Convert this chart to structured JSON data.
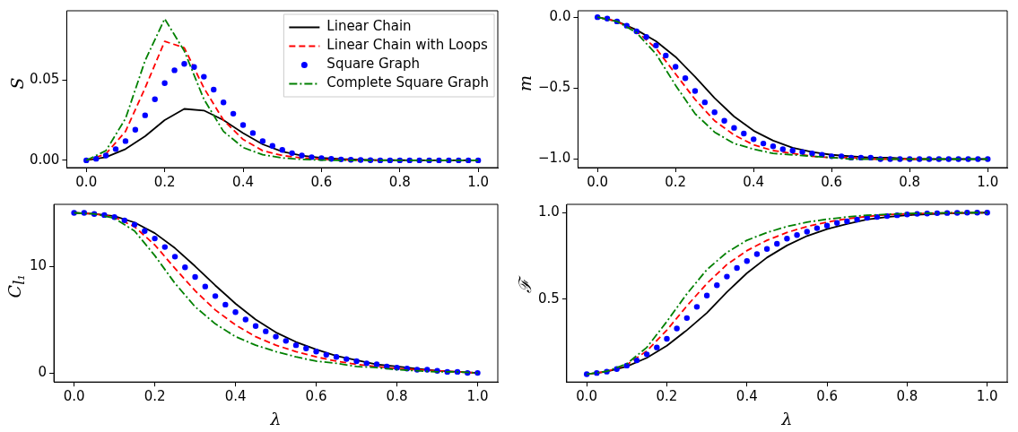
{
  "chart_data": [
    {
      "type": "line",
      "ylabel": "S",
      "xlim": [
        -0.05,
        1.05
      ],
      "ylim": [
        -0.0045,
        0.093
      ],
      "x": [
        0,
        0.05,
        0.1,
        0.15,
        0.2,
        0.25,
        0.3,
        0.35,
        0.4,
        0.45,
        0.5,
        0.55,
        0.6,
        0.65,
        0.7,
        0.75,
        0.8,
        0.85,
        0.9,
        0.95,
        1.0
      ],
      "xticks": [
        {
          "value": 0,
          "label": "0.0"
        },
        {
          "value": 0.2,
          "label": "0.2"
        },
        {
          "value": 0.4,
          "label": "0.4"
        },
        {
          "value": 0.6,
          "label": "0.6"
        },
        {
          "value": 0.8,
          "label": "0.8"
        },
        {
          "value": 1,
          "label": "1.0"
        }
      ],
      "yticks": [
        {
          "value": 0,
          "label": "0.00"
        },
        {
          "value": 0.05,
          "label": "0.05"
        }
      ],
      "legend": "top right",
      "series": [
        {
          "name": "Linear Chain",
          "color": "#000000",
          "line_style": "solid",
          "values": [
            0,
            0.002,
            0.007,
            0.015,
            0.025,
            0.032,
            0.031,
            0.025,
            0.017,
            0.01,
            0.0055,
            0.003,
            0.0015,
            0.0008,
            0.0004,
            0.0002,
            0.0001,
            0,
            0,
            0,
            0
          ]
        },
        {
          "name": "Linear Chain with Loops",
          "color": "#ff0000",
          "line_style": "dashed",
          "values": [
            0,
            0.004,
            0.018,
            0.045,
            0.074,
            0.07,
            0.045,
            0.025,
            0.013,
            0.006,
            0.003,
            0.0015,
            0.0007,
            0.0003,
            0.0001,
            0,
            null,
            null,
            null,
            null,
            null
          ]
        },
        {
          "name": "Square Graph",
          "type": "scatter",
          "color": "#0000ff",
          "marker": "circle",
          "x": [
            0,
            0.025,
            0.05,
            0.075,
            0.1,
            0.125,
            0.15,
            0.175,
            0.2,
            0.225,
            0.25,
            0.275,
            0.3,
            0.325,
            0.35,
            0.375,
            0.4,
            0.425,
            0.45,
            0.475,
            0.5,
            0.525,
            0.55,
            0.575,
            0.6,
            0.625,
            0.65,
            0.675,
            0.7,
            0.725,
            0.75,
            0.775,
            0.8,
            0.825,
            0.85,
            0.875,
            0.9,
            0.925,
            0.95,
            0.975,
            1.0
          ],
          "values": [
            0,
            0.001,
            0.003,
            0.007,
            0.012,
            0.019,
            0.028,
            0.038,
            0.048,
            0.056,
            0.06,
            0.058,
            0.052,
            0.044,
            0.036,
            0.029,
            0.022,
            0.017,
            0.012,
            0.009,
            0.0065,
            0.0045,
            0.003,
            0.002,
            0.0014,
            0.0009,
            0.0006,
            0.0004,
            0.0002,
            0.0001,
            0,
            0,
            0,
            0,
            0,
            0,
            0,
            0,
            0,
            0,
            0
          ]
        },
        {
          "name": "Complete Square Graph",
          "color": "#008000",
          "line_style": "dashdot",
          "values": [
            0,
            0.006,
            0.026,
            0.062,
            0.088,
            0.068,
            0.038,
            0.018,
            0.008,
            0.0035,
            0.0015,
            0.0006,
            0.0002,
            0,
            0,
            0,
            0,
            0,
            0,
            0,
            0
          ]
        }
      ]
    },
    {
      "type": "line",
      "ylabel": "m",
      "xlim": [
        -0.05,
        1.05
      ],
      "ylim": [
        -1.06,
        0.045
      ],
      "x": [
        0,
        0.05,
        0.1,
        0.15,
        0.2,
        0.25,
        0.3,
        0.35,
        0.4,
        0.45,
        0.5,
        0.55,
        0.6,
        0.65,
        0.7,
        0.75,
        0.8,
        0.85,
        0.9,
        0.95,
        1.0
      ],
      "xticks": [
        {
          "value": 0,
          "label": "0.0"
        },
        {
          "value": 0.2,
          "label": "0.2"
        },
        {
          "value": 0.4,
          "label": "0.4"
        },
        {
          "value": 0.6,
          "label": "0.6"
        },
        {
          "value": 0.8,
          "label": "0.8"
        },
        {
          "value": 1,
          "label": "1.0"
        }
      ],
      "yticks": [
        {
          "value": 0,
          "label": "0.0"
        },
        {
          "value": -0.5,
          "label": "−0.5"
        },
        {
          "value": -1,
          "label": "−1.0"
        }
      ],
      "series": [
        {
          "color": "#000000",
          "line_style": "solid",
          "values": [
            0,
            -0.03,
            -0.09,
            -0.17,
            -0.28,
            -0.42,
            -0.57,
            -0.7,
            -0.8,
            -0.87,
            -0.92,
            -0.95,
            -0.97,
            -0.98,
            -0.99,
            -0.99,
            -1,
            -1,
            -1,
            -1,
            -1
          ]
        },
        {
          "color": "#ff0000",
          "line_style": "dashed",
          "values": [
            0,
            -0.03,
            -0.1,
            -0.22,
            -0.4,
            -0.58,
            -0.73,
            -0.83,
            -0.9,
            -0.94,
            -0.96,
            -0.98,
            -0.99,
            -0.99,
            -1,
            -1,
            -1,
            -1,
            null,
            null,
            null
          ]
        },
        {
          "type": "scatter",
          "color": "#0000ff",
          "marker": "circle",
          "x": [
            0,
            0.025,
            0.05,
            0.075,
            0.1,
            0.125,
            0.15,
            0.175,
            0.2,
            0.225,
            0.25,
            0.275,
            0.3,
            0.325,
            0.35,
            0.375,
            0.4,
            0.425,
            0.45,
            0.475,
            0.5,
            0.525,
            0.55,
            0.575,
            0.6,
            0.625,
            0.65,
            0.675,
            0.7,
            0.725,
            0.75,
            0.775,
            0.8,
            0.825,
            0.85,
            0.875,
            0.9,
            0.925,
            0.95,
            0.975,
            1.0
          ],
          "values": [
            0,
            -0.01,
            -0.03,
            -0.06,
            -0.1,
            -0.14,
            -0.2,
            -0.27,
            -0.35,
            -0.43,
            -0.52,
            -0.6,
            -0.67,
            -0.73,
            -0.78,
            -0.82,
            -0.86,
            -0.89,
            -0.91,
            -0.93,
            -0.94,
            -0.95,
            -0.96,
            -0.97,
            -0.98,
            -0.98,
            -0.99,
            -0.99,
            -0.99,
            -1,
            -1,
            -1,
            -1,
            -1,
            -1,
            -1,
            -1,
            -1,
            -1,
            -1,
            -1
          ]
        },
        {
          "color": "#008000",
          "line_style": "dashdot",
          "values": [
            0,
            -0.03,
            -0.11,
            -0.26,
            -0.48,
            -0.68,
            -0.81,
            -0.89,
            -0.93,
            -0.96,
            -0.97,
            -0.98,
            -0.99,
            -1,
            -1,
            -1,
            -1,
            -1,
            -1,
            -1,
            -1
          ]
        }
      ]
    },
    {
      "type": "line",
      "ylabel": "C$_{l₁}$",
      "xlabel": "λ",
      "xlim": [
        -0.05,
        1.05
      ],
      "ylim": [
        -0.85,
        15.8
      ],
      "x": [
        0,
        0.05,
        0.1,
        0.15,
        0.2,
        0.25,
        0.3,
        0.35,
        0.4,
        0.45,
        0.5,
        0.55,
        0.6,
        0.65,
        0.7,
        0.75,
        0.8,
        0.85,
        0.9,
        0.95,
        1.0
      ],
      "xticks": [
        {
          "value": 0,
          "label": "0.0"
        },
        {
          "value": 0.2,
          "label": "0.2"
        },
        {
          "value": 0.4,
          "label": "0.4"
        },
        {
          "value": 0.6,
          "label": "0.6"
        },
        {
          "value": 0.8,
          "label": "0.8"
        },
        {
          "value": 1,
          "label": "1.0"
        }
      ],
      "yticks": [
        0,
        10
      ],
      "series": [
        {
          "color": "#000000",
          "line_style": "solid",
          "values": [
            15,
            14.9,
            14.7,
            14.1,
            13.1,
            11.7,
            10.0,
            8.2,
            6.5,
            5.0,
            3.8,
            2.9,
            2.2,
            1.6,
            1.2,
            0.8,
            0.6,
            0.4,
            0.2,
            0.1,
            0
          ]
        },
        {
          "color": "#ff0000",
          "line_style": "dashed",
          "values": [
            15,
            14.9,
            14.6,
            13.7,
            12.0,
            9.8,
            7.7,
            5.9,
            4.5,
            3.4,
            2.6,
            2.0,
            1.5,
            1.1,
            0.8,
            0.6,
            0.4,
            0.3,
            0.2,
            0.1,
            0
          ]
        },
        {
          "type": "scatter",
          "color": "#0000ff",
          "marker": "circle",
          "x": [
            0,
            0.025,
            0.05,
            0.075,
            0.1,
            0.125,
            0.15,
            0.175,
            0.2,
            0.225,
            0.25,
            0.275,
            0.3,
            0.325,
            0.35,
            0.375,
            0.4,
            0.425,
            0.45,
            0.475,
            0.5,
            0.525,
            0.55,
            0.575,
            0.6,
            0.625,
            0.65,
            0.675,
            0.7,
            0.725,
            0.75,
            0.775,
            0.8,
            0.825,
            0.85,
            0.875,
            0.9,
            0.925,
            0.95,
            0.975,
            1.0
          ],
          "values": [
            15,
            15,
            14.9,
            14.8,
            14.6,
            14.3,
            13.9,
            13.3,
            12.6,
            11.8,
            10.9,
            9.9,
            9.0,
            8.1,
            7.2,
            6.4,
            5.7,
            5.0,
            4.4,
            3.9,
            3.4,
            3.0,
            2.6,
            2.3,
            2.0,
            1.7,
            1.5,
            1.3,
            1.1,
            0.9,
            0.8,
            0.6,
            0.5,
            0.4,
            0.3,
            0.3,
            0.2,
            0.1,
            0.1,
            0,
            0
          ]
        },
        {
          "color": "#008000",
          "line_style": "dashdot",
          "values": [
            15,
            14.9,
            14.5,
            13.3,
            11.0,
            8.4,
            6.2,
            4.6,
            3.4,
            2.6,
            2.0,
            1.5,
            1.1,
            0.9,
            0.6,
            0.5,
            0.3,
            0.2,
            0.1,
            0.1,
            0
          ]
        }
      ]
    },
    {
      "type": "line",
      "ylabel": "ℱ",
      "xlabel": "λ",
      "xlim": [
        -0.05,
        1.05
      ],
      "ylim": [
        0.02,
        1.048
      ],
      "x": [
        0,
        0.05,
        0.1,
        0.15,
        0.2,
        0.25,
        0.3,
        0.35,
        0.4,
        0.45,
        0.5,
        0.55,
        0.6,
        0.65,
        0.7,
        0.75,
        0.8,
        0.85,
        0.9,
        0.95,
        1.0
      ],
      "xticks": [
        {
          "value": 0,
          "label": "0.0"
        },
        {
          "value": 0.2,
          "label": "0.2"
        },
        {
          "value": 0.4,
          "label": "0.4"
        },
        {
          "value": 0.6,
          "label": "0.6"
        },
        {
          "value": 0.8,
          "label": "0.8"
        },
        {
          "value": 1,
          "label": "1.0"
        }
      ],
      "yticks": [
        0.5,
        {
          "value": 1,
          "label": "1.0"
        }
      ],
      "series": [
        {
          "color": "#000000",
          "line_style": "solid",
          "values": [
            0.065,
            0.08,
            0.11,
            0.16,
            0.23,
            0.32,
            0.42,
            0.54,
            0.65,
            0.74,
            0.81,
            0.865,
            0.905,
            0.935,
            0.96,
            0.975,
            0.985,
            0.99,
            0.995,
            0.998,
            1
          ]
        },
        {
          "color": "#ff0000",
          "line_style": "dashed",
          "values": [
            0.065,
            0.08,
            0.12,
            0.2,
            0.32,
            0.46,
            0.59,
            0.7,
            0.78,
            0.84,
            0.885,
            0.92,
            0.945,
            0.965,
            0.978,
            0.988,
            0.993,
            0.996,
            0.998,
            0.999,
            1
          ]
        },
        {
          "type": "scatter",
          "color": "#0000ff",
          "marker": "circle",
          "x": [
            0,
            0.025,
            0.05,
            0.075,
            0.1,
            0.125,
            0.15,
            0.175,
            0.2,
            0.225,
            0.25,
            0.275,
            0.3,
            0.325,
            0.35,
            0.375,
            0.4,
            0.425,
            0.45,
            0.475,
            0.5,
            0.525,
            0.55,
            0.575,
            0.6,
            0.625,
            0.65,
            0.675,
            0.7,
            0.725,
            0.75,
            0.775,
            0.8,
            0.825,
            0.85,
            0.875,
            0.9,
            0.925,
            0.95,
            0.975,
            1.0
          ],
          "values": [
            0.065,
            0.072,
            0.08,
            0.095,
            0.115,
            0.145,
            0.18,
            0.22,
            0.27,
            0.33,
            0.39,
            0.455,
            0.52,
            0.58,
            0.63,
            0.68,
            0.72,
            0.76,
            0.79,
            0.82,
            0.85,
            0.87,
            0.89,
            0.91,
            0.925,
            0.94,
            0.95,
            0.96,
            0.97,
            0.975,
            0.98,
            0.985,
            0.99,
            0.993,
            0.995,
            0.997,
            0.998,
            0.999,
            1,
            1,
            1
          ]
        },
        {
          "color": "#008000",
          "line_style": "dashdot",
          "values": [
            0.065,
            0.082,
            0.125,
            0.22,
            0.37,
            0.53,
            0.67,
            0.77,
            0.84,
            0.885,
            0.92,
            0.945,
            0.962,
            0.975,
            0.985,
            0.99,
            0.995,
            0.997,
            0.999,
            1,
            1
          ]
        }
      ]
    }
  ]
}
